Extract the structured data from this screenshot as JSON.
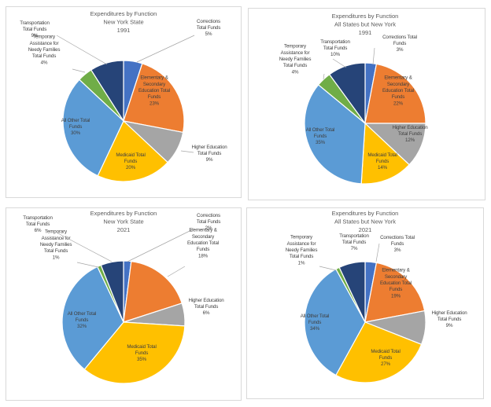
{
  "chart_data": [
    {
      "type": "pie",
      "title": [
        "Expenditures by Function",
        "New York State",
        "1991"
      ],
      "categories": [
        "Corrections Total Funds",
        "Elementary & Secondary Education Total Funds",
        "Higher Education Total Funds",
        "Medicaid Total Funds",
        "All Other Total Funds",
        "Temporary Assistance for Needy Families Total Funds",
        "Transportation Total Funds"
      ],
      "values": [
        5,
        23,
        9,
        20,
        30,
        4,
        9
      ],
      "value_labels": [
        "5%",
        "23%",
        "9%",
        "20%",
        "30%",
        "4%",
        "9%"
      ],
      "label_lines": [
        [
          "Corrections",
          "Total Funds",
          "5%"
        ],
        [
          "Elementary &",
          "Secondary",
          "Education Total",
          "Funds",
          "23%"
        ],
        [
          "Higher Education",
          "Total Funds",
          "9%"
        ],
        [
          "Medicaid Total",
          "Funds",
          "20%"
        ],
        [
          "All Other Total",
          "Funds",
          "30%"
        ],
        [
          "Temporary",
          "Assistance for",
          "Needy Families",
          "Total Funds",
          "4%"
        ],
        [
          "Transportation",
          "Total Funds",
          "9%"
        ]
      ],
      "unit": "percent"
    },
    {
      "type": "pie",
      "title": [
        "Expenditures by Function",
        "All States but New York",
        "1991"
      ],
      "categories": [
        "Corrections Total Funds",
        "Elementary & Secondary Education Total Funds",
        "Higher Education Total Funds",
        "Medicaid Total Funds",
        "All Other Total Funds",
        "Temporary Assistance for Needy Families Total Funds",
        "Transportation Total Funds"
      ],
      "values": [
        3,
        22,
        12,
        14,
        35,
        4,
        10
      ],
      "value_labels": [
        "3%",
        "22%",
        "12%",
        "14%",
        "35%",
        "4%",
        "10%"
      ],
      "label_lines": [
        [
          "Corrections Total",
          "Funds",
          "3%"
        ],
        [
          "Elementary &",
          "Secondary",
          "Education Total",
          "Funds",
          "22%"
        ],
        [
          "Higher Education",
          "Total Funds",
          "12%"
        ],
        [
          "Medicaid Total",
          "Funds",
          "14%"
        ],
        [
          "All Other Total",
          "Funds",
          "35%"
        ],
        [
          "Temporary",
          "Assistance for",
          "Needy Families",
          "Total Funds",
          "4%"
        ],
        [
          "Transportation",
          "Total Funds",
          "10%"
        ]
      ],
      "unit": "percent"
    },
    {
      "type": "pie",
      "title": [
        "Expenditures by Function",
        "New York State",
        "2021"
      ],
      "categories": [
        "Corrections Total Funds",
        "Elementary & Secondary Education Total Funds",
        "Higher Education Total Funds",
        "Medicaid Total Funds",
        "All Other Total Funds",
        "Temporary Assistance for Needy Families Total Funds",
        "Transportation Total Funds"
      ],
      "values": [
        2,
        18,
        6,
        35,
        32,
        1,
        6
      ],
      "value_labels": [
        "2%",
        "18%",
        "6%",
        "35%",
        "32%",
        "1%",
        "6%"
      ],
      "label_lines": [
        [
          "Corrections",
          "Total Funds",
          "2%"
        ],
        [
          "Elementary &",
          "Secondary",
          "Education Total",
          "Funds",
          "18%"
        ],
        [
          "Higher Education",
          "Total Funds",
          "6%"
        ],
        [
          "Medicaid Total",
          "Funds",
          "35%"
        ],
        [
          "All Other Total",
          "Funds",
          "32%"
        ],
        [
          "Temporary",
          "Assistance for",
          "Needy Families",
          "Total Funds",
          "1%"
        ],
        [
          "Transportation",
          "Total Funds",
          "6%"
        ]
      ],
      "unit": "percent"
    },
    {
      "type": "pie",
      "title": [
        "Expenditures by Function",
        "All States but New York",
        "2021"
      ],
      "categories": [
        "Corrections Total Funds",
        "Elementary & Secondary Education Total Funds",
        "Higher Education Total Funds",
        "Medicaid Total Funds",
        "All Other Total Funds",
        "Temporary Assistance for Needy Families Total Funds",
        "Transportation Total Funds"
      ],
      "values": [
        3,
        19,
        9,
        27,
        34,
        1,
        7
      ],
      "value_labels": [
        "3%",
        "19%",
        "9%",
        "27%",
        "34%",
        "1%",
        "7%"
      ],
      "label_lines": [
        [
          "Corrections Total",
          "Funds",
          "3%"
        ],
        [
          "Elementary &",
          "Secondary",
          "Education Total",
          "Funds",
          "19%"
        ],
        [
          "Higher Education",
          "Total Funds",
          "9%"
        ],
        [
          "Medicaid Total",
          "Funds",
          "27%"
        ],
        [
          "All Other Total",
          "Funds",
          "34%"
        ],
        [
          "Temporary",
          "Assistance for",
          "Needy Families",
          "Total Funds",
          "1%"
        ],
        [
          "Transportation",
          "Total Funds",
          "7%"
        ]
      ],
      "unit": "percent"
    }
  ],
  "colors": {
    "corrections": "#4472C4",
    "elementary_secondary": "#ED7D31",
    "higher_education": "#A5A5A5",
    "medicaid": "#FFC000",
    "all_other": "#5B9BD5",
    "tanf": "#70AD47",
    "transportation": "#264478"
  },
  "slice_colors": [
    "#4472C4",
    "#ED7D31",
    "#A5A5A5",
    "#FFC000",
    "#5B9BD5",
    "#70AD47",
    "#264478"
  ]
}
